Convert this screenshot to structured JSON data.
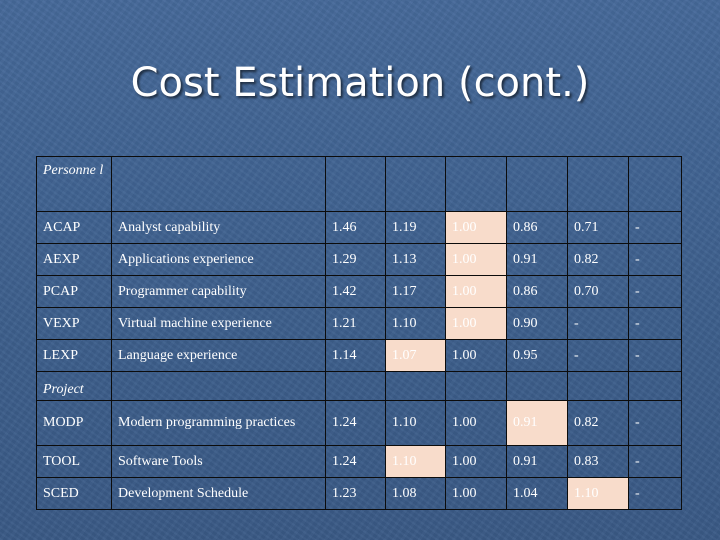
{
  "slide": {
    "title": "Cost Estimation (cont.)"
  },
  "colors": {
    "background": "#3f6290",
    "highlight": "#f8dccb",
    "text": "#ffffff"
  },
  "sections": [
    {
      "label": "Personne l",
      "rows": [
        {
          "code": "ACAP",
          "name": "Analyst capability",
          "values": [
            "1.46",
            "1.19",
            "1.00",
            "0.86",
            "0.71",
            "-"
          ],
          "highlight": [
            2
          ]
        },
        {
          "code": "AEXP",
          "name": "Applications experience",
          "values": [
            "1.29",
            "1.13",
            "1.00",
            "0.91",
            "0.82",
            "-"
          ],
          "highlight": [
            2
          ]
        },
        {
          "code": "PCAP",
          "name": "Programmer capability",
          "values": [
            "1.42",
            "1.17",
            "1.00",
            "0.86",
            "0.70",
            "-"
          ],
          "highlight": [
            2
          ]
        },
        {
          "code": "VEXP",
          "name": "Virtual machine experience",
          "values": [
            "1.21",
            "1.10",
            "1.00",
            "0.90",
            "-",
            "-"
          ],
          "highlight": [
            2
          ]
        },
        {
          "code": "LEXP",
          "name": "Language experience",
          "values": [
            "1.14",
            "1.07",
            "1.00",
            "0.95",
            "-",
            "-"
          ],
          "highlight": [
            1
          ]
        }
      ]
    },
    {
      "label": "Project",
      "rows": [
        {
          "code": "MODP",
          "name": "Modern programming practices",
          "values": [
            "1.24",
            "1.10",
            "1.00",
            "0.91",
            "0.82",
            "-"
          ],
          "highlight": [
            3
          ]
        },
        {
          "code": "TOOL",
          "name": "Software Tools",
          "values": [
            "1.24",
            "1.10",
            "1.00",
            "0.91",
            "0.83",
            "-"
          ],
          "highlight": [
            1
          ]
        },
        {
          "code": "SCED",
          "name": "Development Schedule",
          "values": [
            "1.23",
            "1.08",
            "1.00",
            "1.04",
            "1.10",
            "-"
          ],
          "highlight": [
            4
          ]
        }
      ]
    }
  ]
}
